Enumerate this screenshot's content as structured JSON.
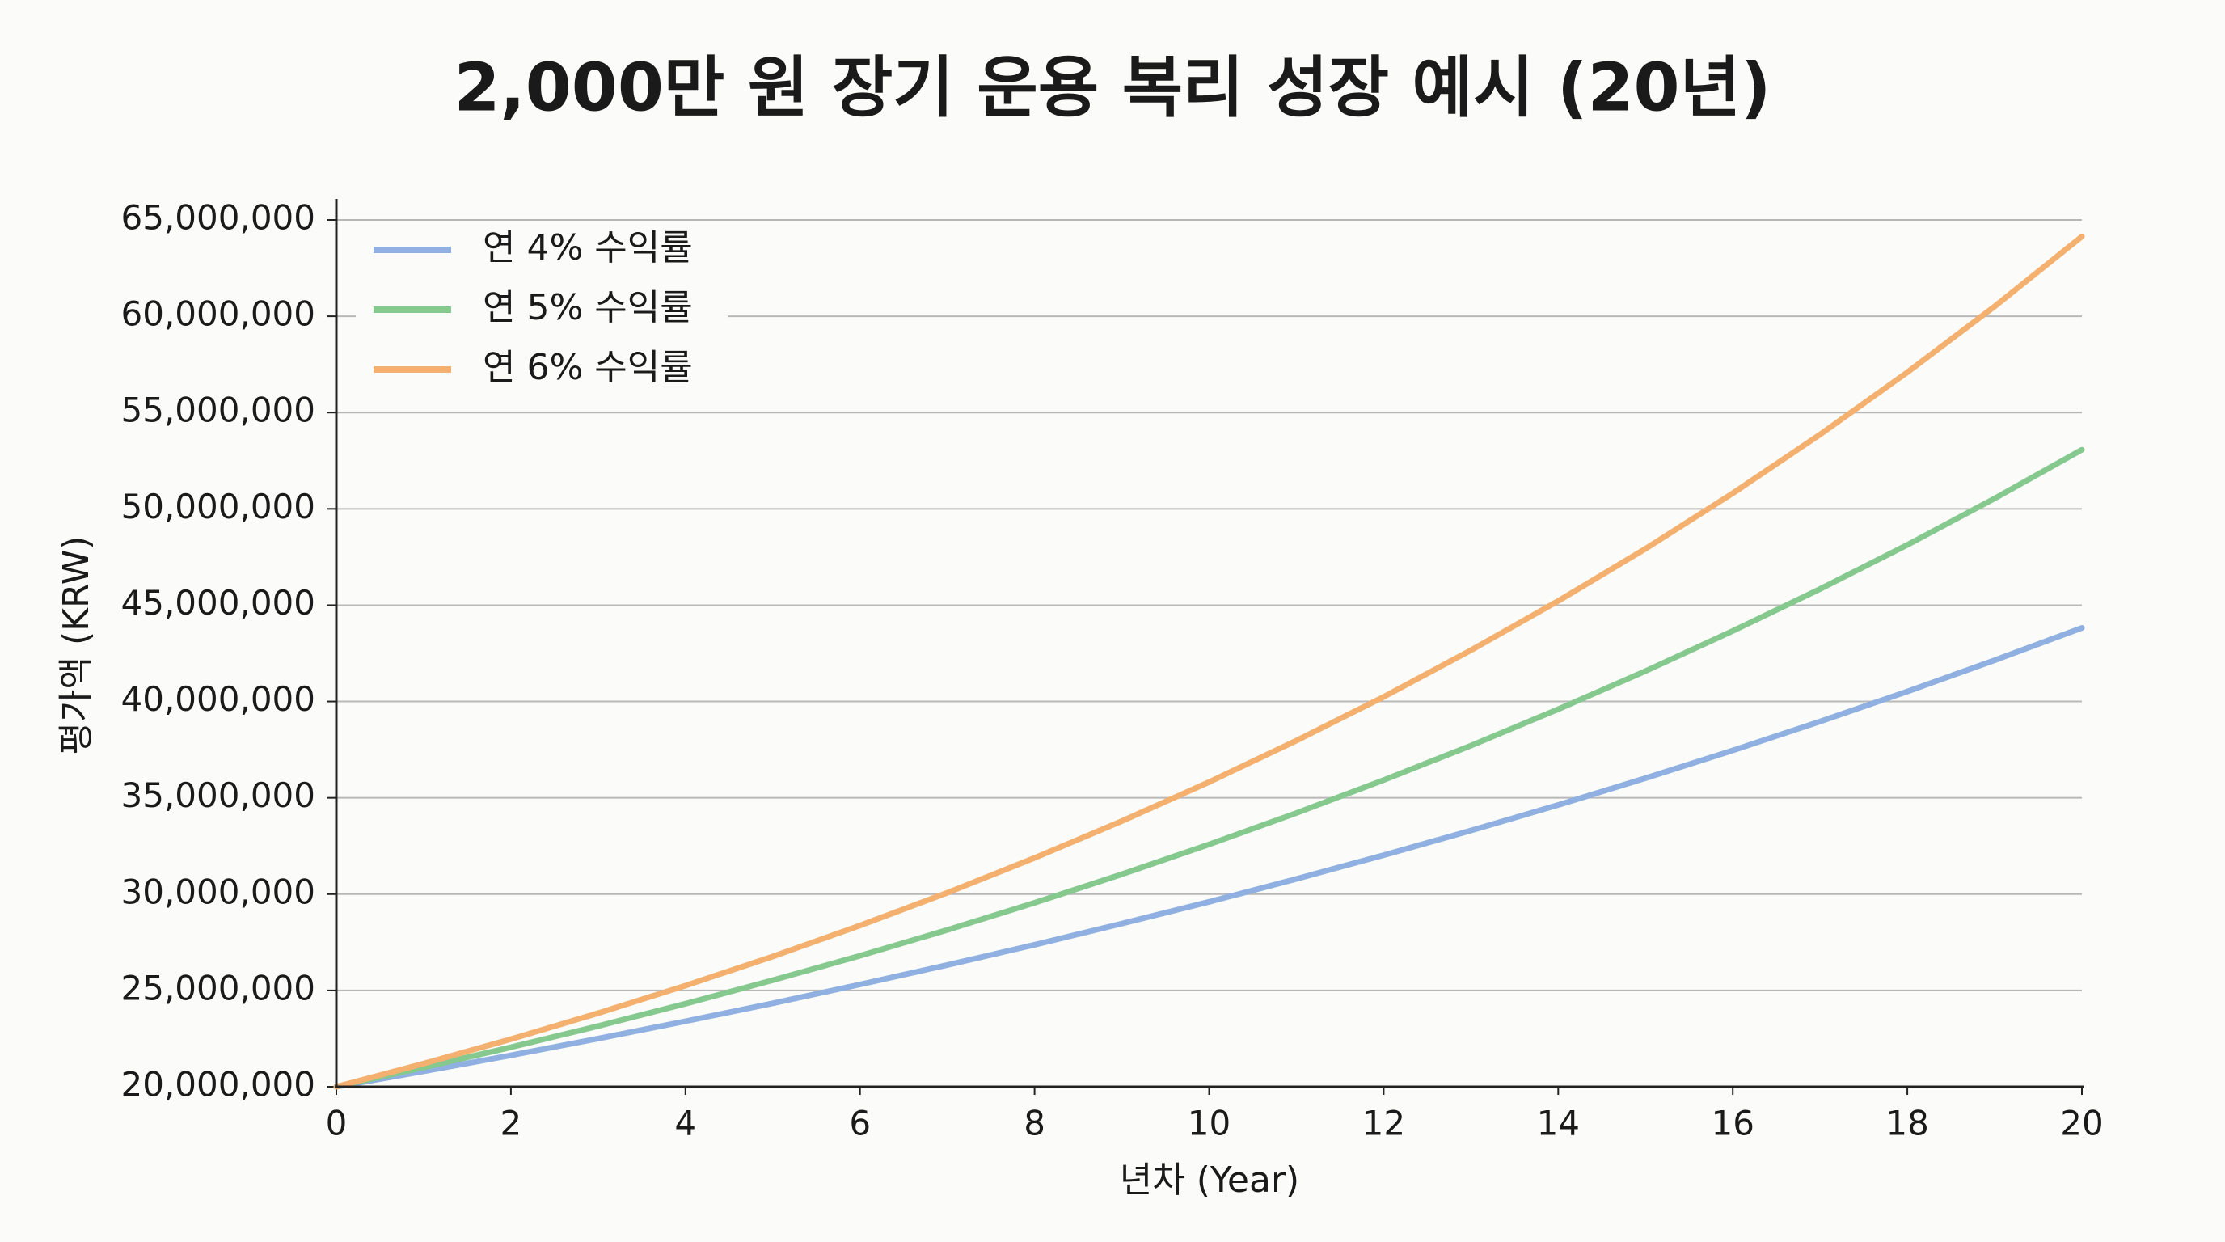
{
  "chart_data": {
    "type": "line",
    "title": "2,000만 원 장기 운용 복리 성장 예시 (20년)",
    "x_label": "년차 (Year)",
    "y_label": "평가액 (KRW)",
    "x": [
      0,
      1,
      2,
      3,
      4,
      5,
      6,
      7,
      8,
      9,
      10,
      11,
      12,
      13,
      14,
      15,
      16,
      17,
      18,
      19,
      20
    ],
    "xlim": [
      0,
      20
    ],
    "xticks": [
      0,
      2,
      4,
      6,
      8,
      10,
      12,
      14,
      16,
      18,
      20
    ],
    "ylim": [
      20000000,
      65000000
    ],
    "yticks": [
      {
        "value": 20000000,
        "label": "20,000,000"
      },
      {
        "value": 25000000,
        "label": "25,000,000"
      },
      {
        "value": 30000000,
        "label": "30,000,000"
      },
      {
        "value": 35000000,
        "label": "35,000,000"
      },
      {
        "value": 40000000,
        "label": "40,000,000"
      },
      {
        "value": 45000000,
        "label": "45,000,000"
      },
      {
        "value": 50000000,
        "label": "50,000,000"
      },
      {
        "value": 55000000,
        "label": "55,000,000"
      },
      {
        "value": 60000000,
        "label": "60,000,000"
      },
      {
        "value": 65000000,
        "label": "65,000,000"
      }
    ],
    "grid": true,
    "legend": "upper left",
    "series": [
      {
        "name": "연 4% 수익률",
        "color": "#8fb0e0",
        "values": [
          20000000,
          20800000,
          21630000,
          22500000,
          23400000,
          24330000,
          25310000,
          26320000,
          27370000,
          28470000,
          29600000,
          30790000,
          32020000,
          33300000,
          34630000,
          36020000,
          37460000,
          38960000,
          40520000,
          42140000,
          43820000
        ]
      },
      {
        "name": "연 5% 수익률",
        "color": "#86c98f",
        "values": [
          20000000,
          21000000,
          22050000,
          23150000,
          24310000,
          25530000,
          26800000,
          28140000,
          29550000,
          31030000,
          32580000,
          34210000,
          35920000,
          37710000,
          39600000,
          41580000,
          43660000,
          45840000,
          48130000,
          50540000,
          53070000
        ]
      },
      {
        "name": "연 6% 수익률",
        "color": "#f4b06e",
        "values": [
          20000000,
          21200000,
          22470000,
          23820000,
          25250000,
          26760000,
          28370000,
          30070000,
          31880000,
          33790000,
          35820000,
          37970000,
          40240000,
          42660000,
          45220000,
          47930000,
          50810000,
          53860000,
          57090000,
          60510000,
          64140000
        ]
      }
    ]
  }
}
